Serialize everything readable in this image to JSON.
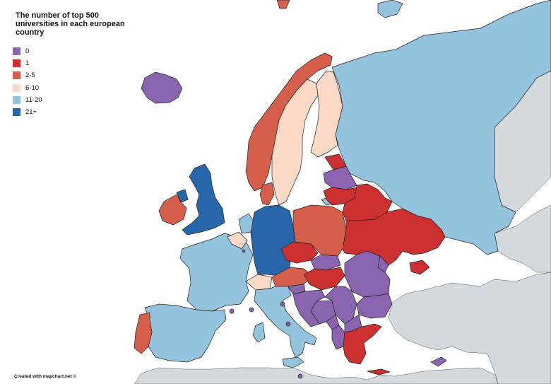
{
  "title": "The number of top 500 universities in each european country",
  "legend": [
    {
      "label": "0",
      "color": "#8b64b0"
    },
    {
      "label": "1",
      "color": "#cc3030"
    },
    {
      "label": "2-5",
      "color": "#d65f4b"
    },
    {
      "label": "6-10",
      "color": "#fbd9c6"
    },
    {
      "label": "11-20",
      "color": "#94c4dd"
    },
    {
      "label": "21+",
      "color": "#2766aa"
    }
  ],
  "credit": "Created with mapchart.net ©",
  "non_selected_color": "#d3d9dc"
}
